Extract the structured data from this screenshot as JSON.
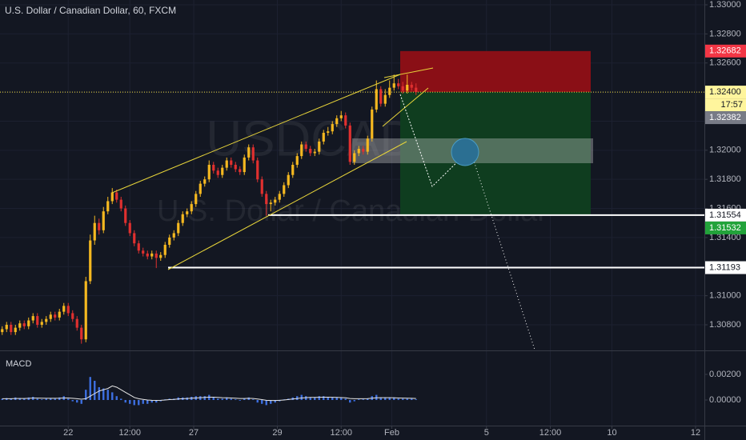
{
  "chart_data": {
    "type": "candlestick",
    "title": "U.S. Dollar / Canadian Dollar, 60, FXCM",
    "watermark": "USDCAD, 60",
    "watermark_subtitle": "U.S. Dollar / Canadian Dollar",
    "up_color": "#f5b820",
    "down_color": "#e0302f",
    "grid": true,
    "x": [
      0,
      1,
      2,
      3,
      4,
      5,
      6,
      7,
      8,
      9,
      10,
      11,
      12,
      13,
      14,
      15,
      16,
      17,
      18,
      19,
      20,
      21,
      22,
      23,
      24,
      25,
      26,
      27,
      28,
      29,
      30,
      31,
      32,
      33,
      34,
      35,
      36,
      37,
      38,
      39,
      40,
      41,
      42,
      43,
      44,
      45,
      46,
      47,
      48,
      49,
      50,
      51,
      52,
      53,
      54,
      55,
      56,
      57,
      58,
      59,
      60,
      61,
      62,
      63,
      64,
      65,
      66,
      67,
      68,
      69,
      70,
      71,
      72,
      73,
      74,
      75,
      76,
      77,
      78,
      79,
      80,
      81,
      82,
      83,
      84,
      85,
      86,
      87,
      88,
      89,
      90,
      91,
      92,
      93,
      94
    ],
    "ohlc": [
      [
        1.3075,
        1.3079,
        1.3073,
        1.3077
      ],
      [
        1.3077,
        1.3082,
        1.3075,
        1.308
      ],
      [
        1.308,
        1.3082,
        1.3073,
        1.3075
      ],
      [
        1.3075,
        1.308,
        1.3073,
        1.3078
      ],
      [
        1.3078,
        1.3083,
        1.3076,
        1.3081
      ],
      [
        1.3081,
        1.3083,
        1.3077,
        1.3079
      ],
      [
        1.3079,
        1.3085,
        1.3077,
        1.3083
      ],
      [
        1.3083,
        1.3088,
        1.3081,
        1.3086
      ],
      [
        1.3086,
        1.3088,
        1.3078,
        1.308
      ],
      [
        1.308,
        1.3084,
        1.3078,
        1.3082
      ],
      [
        1.3082,
        1.3086,
        1.308,
        1.3084
      ],
      [
        1.3084,
        1.3089,
        1.3082,
        1.3087
      ],
      [
        1.3087,
        1.3089,
        1.3083,
        1.3085
      ],
      [
        1.3085,
        1.3091,
        1.3083,
        1.3089
      ],
      [
        1.3089,
        1.3095,
        1.3087,
        1.3093
      ],
      [
        1.3093,
        1.3095,
        1.3086,
        1.3088
      ],
      [
        1.3088,
        1.309,
        1.3082,
        1.3084
      ],
      [
        1.3084,
        1.3086,
        1.3076,
        1.3078
      ],
      [
        1.3078,
        1.308,
        1.3067,
        1.307
      ],
      [
        1.307,
        1.3113,
        1.3068,
        1.311
      ],
      [
        1.311,
        1.3142,
        1.3108,
        1.3138
      ],
      [
        1.3138,
        1.3155,
        1.3135,
        1.315
      ],
      [
        1.315,
        1.3153,
        1.3142,
        1.3145
      ],
      [
        1.3145,
        1.3161,
        1.3143,
        1.3158
      ],
      [
        1.3158,
        1.3168,
        1.3156,
        1.3165
      ],
      [
        1.3165,
        1.3174,
        1.3163,
        1.3171
      ],
      [
        1.3171,
        1.3173,
        1.3164,
        1.3166
      ],
      [
        1.3166,
        1.3168,
        1.3158,
        1.316
      ],
      [
        1.316,
        1.3162,
        1.3148,
        1.315
      ],
      [
        1.315,
        1.3152,
        1.3141,
        1.3143
      ],
      [
        1.3143,
        1.3145,
        1.3134,
        1.3136
      ],
      [
        1.3136,
        1.3138,
        1.3129,
        1.3131
      ],
      [
        1.3131,
        1.3133,
        1.3127,
        1.3129
      ],
      [
        1.3129,
        1.3131,
        1.3125,
        1.3127
      ],
      [
        1.3127,
        1.3131,
        1.3125,
        1.3129
      ],
      [
        1.3129,
        1.3131,
        1.3119,
        1.3126
      ],
      [
        1.3126,
        1.313,
        1.3124,
        1.3128
      ],
      [
        1.3128,
        1.3137,
        1.3126,
        1.3135
      ],
      [
        1.3135,
        1.3142,
        1.3133,
        1.314
      ],
      [
        1.314,
        1.3145,
        1.3138,
        1.3143
      ],
      [
        1.3143,
        1.3152,
        1.3141,
        1.315
      ],
      [
        1.315,
        1.3158,
        1.3148,
        1.3156
      ],
      [
        1.3156,
        1.316,
        1.3154,
        1.3158
      ],
      [
        1.3158,
        1.3165,
        1.3156,
        1.3163
      ],
      [
        1.3163,
        1.3172,
        1.3161,
        1.317
      ],
      [
        1.317,
        1.3179,
        1.3168,
        1.3177
      ],
      [
        1.3177,
        1.3182,
        1.3175,
        1.318
      ],
      [
        1.318,
        1.3193,
        1.3178,
        1.319
      ],
      [
        1.319,
        1.3192,
        1.3184,
        1.3186
      ],
      [
        1.3186,
        1.3188,
        1.3181,
        1.3183
      ],
      [
        1.3183,
        1.319,
        1.3181,
        1.3188
      ],
      [
        1.3188,
        1.3195,
        1.3186,
        1.3193
      ],
      [
        1.3193,
        1.3195,
        1.3188,
        1.319
      ],
      [
        1.319,
        1.3192,
        1.3185,
        1.3187
      ],
      [
        1.3187,
        1.3189,
        1.3183,
        1.3185
      ],
      [
        1.3185,
        1.3197,
        1.3183,
        1.3195
      ],
      [
        1.3195,
        1.3204,
        1.3193,
        1.3202
      ],
      [
        1.3202,
        1.3204,
        1.3191,
        1.3193
      ],
      [
        1.3193,
        1.3195,
        1.3178,
        1.318
      ],
      [
        1.318,
        1.3182,
        1.3168,
        1.317
      ],
      [
        1.317,
        1.3172,
        1.3155,
        1.3163
      ],
      [
        1.3163,
        1.3166,
        1.3158,
        1.3164
      ],
      [
        1.3164,
        1.3168,
        1.3162,
        1.3166
      ],
      [
        1.3166,
        1.3172,
        1.3164,
        1.317
      ],
      [
        1.317,
        1.3178,
        1.3168,
        1.3176
      ],
      [
        1.3176,
        1.3185,
        1.3174,
        1.3183
      ],
      [
        1.3183,
        1.3192,
        1.3181,
        1.319
      ],
      [
        1.319,
        1.3198,
        1.3188,
        1.3196
      ],
      [
        1.3196,
        1.3206,
        1.3194,
        1.3204
      ],
      [
        1.3204,
        1.3206,
        1.3199,
        1.3201
      ],
      [
        1.3201,
        1.3203,
        1.3196,
        1.3198
      ],
      [
        1.3198,
        1.3201,
        1.3196,
        1.3199
      ],
      [
        1.3199,
        1.3208,
        1.3197,
        1.3206
      ],
      [
        1.3206,
        1.3214,
        1.3204,
        1.3212
      ],
      [
        1.3212,
        1.3216,
        1.321,
        1.3213
      ],
      [
        1.3213,
        1.322,
        1.3211,
        1.3218
      ],
      [
        1.3218,
        1.3224,
        1.3216,
        1.3222
      ],
      [
        1.3222,
        1.3227,
        1.322,
        1.3224
      ],
      [
        1.3224,
        1.3226,
        1.3215,
        1.3217
      ],
      [
        1.3217,
        1.3219,
        1.319,
        1.3192
      ],
      [
        1.3192,
        1.32,
        1.319,
        1.3198
      ],
      [
        1.3198,
        1.3203,
        1.3196,
        1.3201
      ],
      [
        1.3201,
        1.3203,
        1.3197,
        1.3199
      ],
      [
        1.3199,
        1.321,
        1.3197,
        1.3208
      ],
      [
        1.3208,
        1.323,
        1.3206,
        1.3228
      ],
      [
        1.3228,
        1.3248,
        1.3226,
        1.3242
      ],
      [
        1.3242,
        1.3244,
        1.323,
        1.3232
      ],
      [
        1.3232,
        1.3242,
        1.323,
        1.3238
      ],
      [
        1.3238,
        1.3248,
        1.3236,
        1.3243
      ],
      [
        1.3243,
        1.3252,
        1.3241,
        1.3246
      ],
      [
        1.3246,
        1.3249,
        1.3242,
        1.3244
      ],
      [
        1.3244,
        1.3247,
        1.3239,
        1.3241
      ],
      [
        1.3241,
        1.3252,
        1.3239,
        1.3245
      ],
      [
        1.3245,
        1.3247,
        1.3241,
        1.3243
      ],
      [
        1.3243,
        1.3246,
        1.3238,
        1.324
      ]
    ],
    "xlim": [
      -0.5,
      159.5
    ],
    "xticks": [
      {
        "value": 15,
        "label": "22"
      },
      {
        "value": 29,
        "label": "12:00"
      },
      {
        "value": 43.5,
        "label": "27"
      },
      {
        "value": 62.5,
        "label": "29"
      },
      {
        "value": 77,
        "label": "12:00"
      },
      {
        "value": 88.5,
        "label": "Feb"
      },
      {
        "value": 110,
        "label": "5"
      },
      {
        "value": 124.5,
        "label": "12:00"
      },
      {
        "value": 138.5,
        "label": "10"
      },
      {
        "value": 157.5,
        "label": "12"
      }
    ],
    "ylim": [
      1.30624,
      1.33033
    ],
    "yticks": [
      {
        "value": 1.33,
        "label": "1.33000"
      },
      {
        "value": 1.328,
        "label": "1.32800"
      },
      {
        "value": 1.326,
        "label": "1.32600"
      },
      {
        "value": 1.324,
        "label": "1.32400"
      },
      {
        "value": 1.322,
        "label": "1.32200"
      },
      {
        "value": 1.32,
        "label": "1.32000"
      },
      {
        "value": 1.318,
        "label": "1.31800"
      },
      {
        "value": 1.316,
        "label": "1.31600"
      },
      {
        "value": 1.314,
        "label": "1.31400"
      },
      {
        "value": 1.312,
        "label": "1.31200"
      },
      {
        "value": 1.31,
        "label": "1.31000"
      },
      {
        "value": 1.308,
        "label": "1.30800"
      }
    ],
    "price_levels": [
      {
        "value": 1.32682,
        "label": "1.32682",
        "color": "#f23645",
        "text_color": "#ffffff"
      },
      {
        "value": 1.324,
        "label": "1.32400",
        "color": "#fff59d",
        "text_color": "#131722"
      },
      {
        "value": 1.32382,
        "label": "1.32382",
        "color": "#787b86",
        "text_color": "#ffffff"
      },
      {
        "value": 1.31554,
        "label": "1.31554",
        "color": "#ffffff",
        "text_color": "#131722"
      },
      {
        "value": 1.31532,
        "label": "1.31532",
        "color": "#22a33a",
        "text_color": "#ffffff"
      },
      {
        "value": 1.31193,
        "label": "1.31193",
        "color": "#ffffff",
        "text_color": "#131722"
      }
    ],
    "countdown": "17:57",
    "indicator": {
      "name": "MACD",
      "histogram_color": "#3d6fe0",
      "signal_color": "#e8e8e8",
      "ylim": [
        -0.002,
        0.00375
      ],
      "yticks": [
        {
          "value": 0.002,
          "label": "0.00200"
        },
        {
          "value": 0,
          "label": "0.00000"
        }
      ],
      "histogram": [
        0.0001,
        0.00015,
        0.0001,
        0.0002,
        0.00015,
        0.0001,
        0.0002,
        0.00025,
        0.0001,
        5e-05,
        0.0001,
        0.00015,
        0.0001,
        0.0002,
        0.0003,
        0.0001,
        -0.0001,
        -0.0002,
        -0.0003,
        0.0008,
        0.0018,
        0.0015,
        0.001,
        0.0009,
        0.0008,
        0.0006,
        0.0003,
        0.0001,
        -0.0002,
        -0.0003,
        -0.0004,
        -0.0004,
        -0.0003,
        -0.0003,
        -0.0002,
        -0.0002,
        -0.0001,
        5e-05,
        0.0001,
        0.0001,
        0.0002,
        0.0002,
        0.0002,
        0.00025,
        0.0003,
        0.0003,
        0.0003,
        0.0004,
        0.0002,
        0.0001,
        0.0001,
        0.0002,
        0.0001,
        5e-05,
        -5e-05,
        0.0001,
        0.0002,
        5e-05,
        -0.0002,
        -0.0003,
        -0.0004,
        -0.0003,
        -0.0002,
        -0.0001,
        5e-05,
        0.0001,
        0.0002,
        0.0003,
        0.0004,
        0.0003,
        0.0002,
        0.0002,
        0.0003,
        0.0003,
        0.0002,
        0.0002,
        0.0002,
        0.0002,
        0.0001,
        -0.0002,
        -0.0001,
        5e-05,
        5e-05,
        0.0001,
        0.0003,
        0.0004,
        0.0002,
        0.0002,
        0.0002,
        0.0002,
        0.0001,
        0.0001,
        0.0001,
        0.0001,
        5e-05
      ],
      "signal": [
        0.0001,
        0.0001,
        0.0001,
        0.00012,
        0.00012,
        0.00012,
        0.00013,
        0.00015,
        0.00015,
        0.00014,
        0.00013,
        0.00013,
        0.00013,
        0.00014,
        0.00016,
        0.00016,
        0.00013,
        0.0001,
        6e-05,
        0.0001,
        0.0003,
        0.0005,
        0.0007,
        0.0008,
        0.0009,
        0.0011,
        0.001,
        0.0008,
        0.0006,
        0.0004,
        0.0002,
        0.0001,
        5e-05,
        0,
        -2e-05,
        -3e-05,
        -2e-05,
        0,
        3e-05,
        5e-05,
        8e-05,
        0.0001,
        0.00012,
        0.00014,
        0.00016,
        0.00018,
        0.0002,
        0.00022,
        0.00022,
        0.0002,
        0.00018,
        0.00017,
        0.00016,
        0.00014,
        0.00012,
        0.00012,
        0.00013,
        0.00012,
        8e-05,
        3e-05,
        -2e-05,
        -4e-05,
        -4e-05,
        -2e-05,
        0,
        4e-05,
        8e-05,
        0.00012,
        0.00016,
        0.00018,
        0.0002,
        0.0002,
        0.00021,
        0.00022,
        0.00022,
        0.00021,
        0.0002,
        0.00019,
        0.00017,
        0.00012,
        0.0001,
        0.0001,
        0.0001,
        0.00011,
        0.00014,
        0.00017,
        0.00018,
        0.00018,
        0.00018,
        0.00017,
        0.00016,
        0.00015,
        0.00014,
        0.00013,
        0.00012
      ]
    }
  }
}
